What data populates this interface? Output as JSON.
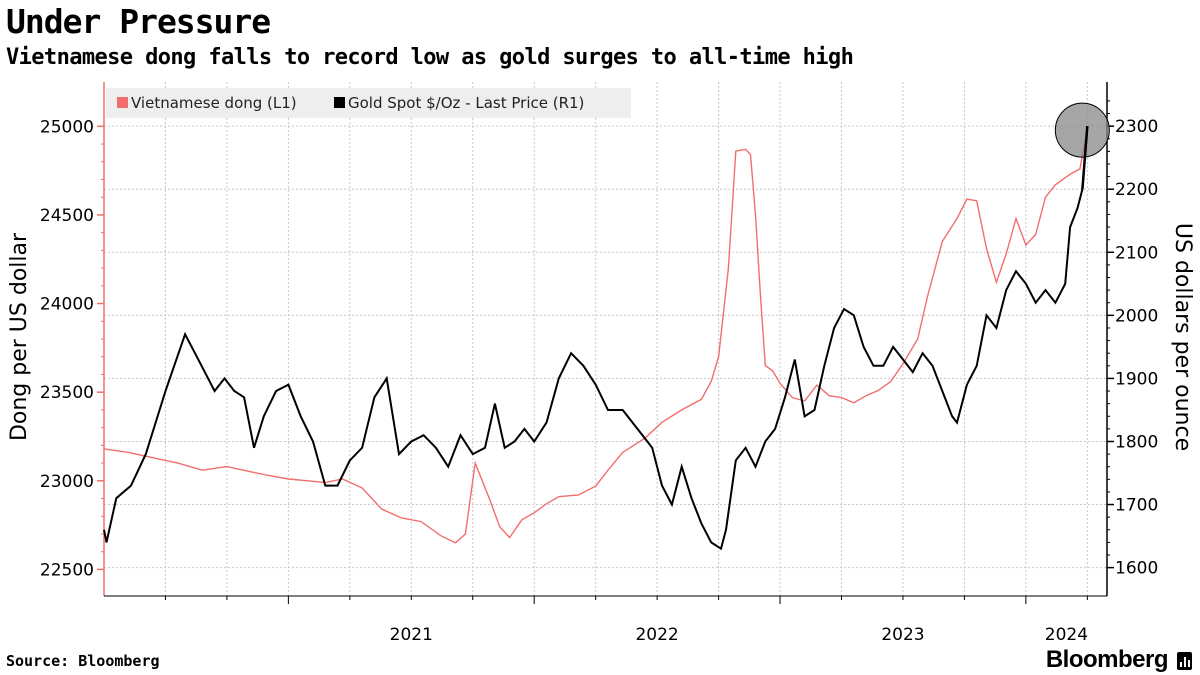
{
  "header": {
    "title": "Under Pressure",
    "subtitle": "Vietnamese dong falls to record low as gold surges to all-time high"
  },
  "footer": {
    "source": "Source: Bloomberg",
    "brand": "Bloomberg"
  },
  "colors": {
    "dong": "#f26e6e",
    "gold": "#000000",
    "grid": "#c8c8c8",
    "legend_bg": "#eeeeee",
    "highlight": "#888888"
  },
  "chart_data": {
    "type": "line",
    "title": "Under Pressure",
    "subtitle": "Vietnamese dong falls to record low as gold surges to all-time high",
    "legend": [
      "Vietnamese dong (L1)",
      "Gold Spot $/Oz - Last Price (R1)"
    ],
    "legend_position": "top-left",
    "x_ticks": [
      "2021",
      "2022",
      "2023",
      "2024"
    ],
    "x_range": [
      "2020-04",
      "2024-04"
    ],
    "left_axis": {
      "label": "Dong per US dollar",
      "ticks": [
        22500,
        23000,
        23500,
        24000,
        24500,
        25000
      ],
      "tick_labels": [
        "22500",
        "23000",
        "23500",
        "24000",
        "24500",
        "25000"
      ],
      "range": [
        22350,
        25250
      ]
    },
    "right_axis": {
      "label": "US dollars per ounce",
      "ticks": [
        1600,
        1700,
        1800,
        1900,
        2000,
        2100,
        2200,
        2300
      ],
      "tick_labels": [
        "1600",
        "1700",
        "1800",
        "1900",
        "2000",
        "2100",
        "2200",
        "2300"
      ],
      "range": [
        1555,
        2370
      ]
    },
    "grid": true,
    "series": [
      {
        "name": "Vietnamese dong (L1)",
        "axis": "left",
        "color": "#f26e6e",
        "points": [
          [
            "2020.25",
            23180
          ],
          [
            "2020.35",
            23160
          ],
          [
            "2020.45",
            23130
          ],
          [
            "2020.55",
            23100
          ],
          [
            "2020.65",
            23060
          ],
          [
            "2020.75",
            23080
          ],
          [
            "2020.85",
            23050
          ],
          [
            "2020.92",
            23030
          ],
          [
            "2021.00",
            23010
          ],
          [
            "2021.08",
            23000
          ],
          [
            "2021.15",
            22990
          ],
          [
            "2021.22",
            23010
          ],
          [
            "2021.30",
            22960
          ],
          [
            "2021.38",
            22840
          ],
          [
            "2021.46",
            22790
          ],
          [
            "2021.54",
            22770
          ],
          [
            "2021.62",
            22690
          ],
          [
            "2021.68",
            22650
          ],
          [
            "2021.72",
            22700
          ],
          [
            "2021.76",
            23100
          ],
          [
            "2021.82",
            22890
          ],
          [
            "2021.86",
            22740
          ],
          [
            "2021.90",
            22680
          ],
          [
            "2021.95",
            22780
          ],
          [
            "2022.00",
            22820
          ],
          [
            "2022.05",
            22870
          ],
          [
            "2022.10",
            22910
          ],
          [
            "2022.18",
            22920
          ],
          [
            "2022.25",
            22970
          ],
          [
            "2022.30",
            23060
          ],
          [
            "2022.36",
            23160
          ],
          [
            "2022.45",
            23240
          ],
          [
            "2022.52",
            23330
          ],
          [
            "2022.60",
            23400
          ],
          [
            "2022.68",
            23460
          ],
          [
            "2022.72",
            23560
          ],
          [
            "2022.75",
            23700
          ],
          [
            "2022.79",
            24200
          ],
          [
            "2022.82",
            24860
          ],
          [
            "2022.86",
            24870
          ],
          [
            "2022.88",
            24840
          ],
          [
            "2022.90",
            24500
          ],
          [
            "2022.92",
            24050
          ],
          [
            "2022.94",
            23650
          ],
          [
            "2022.97",
            23620
          ],
          [
            "2023.00",
            23550
          ],
          [
            "2023.05",
            23470
          ],
          [
            "2023.10",
            23450
          ],
          [
            "2023.15",
            23540
          ],
          [
            "2023.20",
            23480
          ],
          [
            "2023.25",
            23470
          ],
          [
            "2023.30",
            23440
          ],
          [
            "2023.35",
            23480
          ],
          [
            "2023.40",
            23510
          ],
          [
            "2023.45",
            23560
          ],
          [
            "2023.50",
            23660
          ],
          [
            "2023.56",
            23800
          ],
          [
            "2023.60",
            24040
          ],
          [
            "2023.66",
            24350
          ],
          [
            "2023.72",
            24480
          ],
          [
            "2023.76",
            24590
          ],
          [
            "2023.80",
            24580
          ],
          [
            "2023.84",
            24310
          ],
          [
            "2023.88",
            24120
          ],
          [
            "2023.92",
            24280
          ],
          [
            "2023.96",
            24480
          ],
          [
            "2024.00",
            24330
          ],
          [
            "2024.04",
            24390
          ],
          [
            "2024.08",
            24600
          ],
          [
            "2024.12",
            24670
          ],
          [
            "2024.18",
            24730
          ],
          [
            "2024.22",
            24760
          ],
          [
            "2024.25",
            24990
          ]
        ]
      },
      {
        "name": "Gold Spot $/Oz - Last Price (R1)",
        "axis": "right",
        "color": "#000000",
        "points": [
          [
            "2020.25",
            1660
          ],
          [
            "2020.26",
            1640
          ],
          [
            "2020.30",
            1710
          ],
          [
            "2020.36",
            1730
          ],
          [
            "2020.42",
            1780
          ],
          [
            "2020.50",
            1880
          ],
          [
            "2020.58",
            1970
          ],
          [
            "2020.62",
            1940
          ],
          [
            "2020.66",
            1910
          ],
          [
            "2020.70",
            1880
          ],
          [
            "2020.74",
            1900
          ],
          [
            "2020.78",
            1880
          ],
          [
            "2020.82",
            1870
          ],
          [
            "2020.86",
            1790
          ],
          [
            "2020.90",
            1840
          ],
          [
            "2020.95",
            1880
          ],
          [
            "2021.00",
            1890
          ],
          [
            "2021.05",
            1840
          ],
          [
            "2021.10",
            1800
          ],
          [
            "2021.15",
            1730
          ],
          [
            "2021.20",
            1730
          ],
          [
            "2021.25",
            1770
          ],
          [
            "2021.30",
            1790
          ],
          [
            "2021.35",
            1870
          ],
          [
            "2021.40",
            1900
          ],
          [
            "2021.45",
            1780
          ],
          [
            "2021.50",
            1800
          ],
          [
            "2021.55",
            1810
          ],
          [
            "2021.60",
            1790
          ],
          [
            "2021.65",
            1760
          ],
          [
            "2021.70",
            1810
          ],
          [
            "2021.75",
            1780
          ],
          [
            "2021.80",
            1790
          ],
          [
            "2021.84",
            1860
          ],
          [
            "2021.88",
            1790
          ],
          [
            "2021.92",
            1800
          ],
          [
            "2021.96",
            1820
          ],
          [
            "2022.00",
            1800
          ],
          [
            "2022.05",
            1830
          ],
          [
            "2022.10",
            1900
          ],
          [
            "2022.15",
            1940
          ],
          [
            "2022.20",
            1920
          ],
          [
            "2022.25",
            1890
          ],
          [
            "2022.30",
            1850
          ],
          [
            "2022.36",
            1850
          ],
          [
            "2022.42",
            1820
          ],
          [
            "2022.48",
            1790
          ],
          [
            "2022.52",
            1730
          ],
          [
            "2022.56",
            1700
          ],
          [
            "2022.60",
            1760
          ],
          [
            "2022.64",
            1710
          ],
          [
            "2022.68",
            1670
          ],
          [
            "2022.72",
            1640
          ],
          [
            "2022.76",
            1630
          ],
          [
            "2022.78",
            1660
          ],
          [
            "2022.82",
            1770
          ],
          [
            "2022.86",
            1790
          ],
          [
            "2022.90",
            1760
          ],
          [
            "2022.94",
            1800
          ],
          [
            "2022.98",
            1820
          ],
          [
            "2023.02",
            1870
          ],
          [
            "2023.06",
            1930
          ],
          [
            "2023.10",
            1840
          ],
          [
            "2023.14",
            1850
          ],
          [
            "2023.18",
            1920
          ],
          [
            "2023.22",
            1980
          ],
          [
            "2023.26",
            2010
          ],
          [
            "2023.30",
            2000
          ],
          [
            "2023.34",
            1950
          ],
          [
            "2023.38",
            1920
          ],
          [
            "2023.42",
            1920
          ],
          [
            "2023.46",
            1950
          ],
          [
            "2023.50",
            1930
          ],
          [
            "2023.54",
            1910
          ],
          [
            "2023.58",
            1940
          ],
          [
            "2023.62",
            1920
          ],
          [
            "2023.66",
            1880
          ],
          [
            "2023.70",
            1840
          ],
          [
            "2023.72",
            1830
          ],
          [
            "2023.76",
            1890
          ],
          [
            "2023.80",
            1920
          ],
          [
            "2023.84",
            2000
          ],
          [
            "2023.88",
            1980
          ],
          [
            "2023.92",
            2040
          ],
          [
            "2023.96",
            2070
          ],
          [
            "2024.00",
            2050
          ],
          [
            "2024.04",
            2020
          ],
          [
            "2024.08",
            2040
          ],
          [
            "2024.12",
            2020
          ],
          [
            "2024.16",
            2050
          ],
          [
            "2024.18",
            2140
          ],
          [
            "2024.21",
            2170
          ],
          [
            "2024.23",
            2200
          ],
          [
            "2024.25",
            2300
          ]
        ]
      }
    ],
    "annotations": [
      {
        "type": "circle-highlight",
        "label": "all-time high"
      }
    ]
  }
}
